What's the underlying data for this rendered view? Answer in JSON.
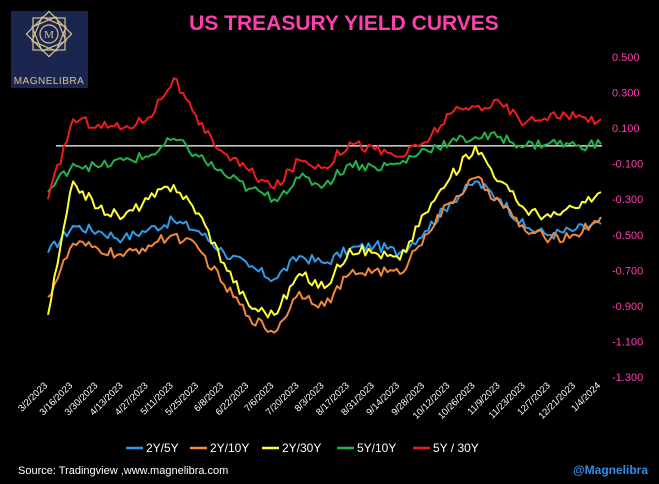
{
  "brand": {
    "logo_text": "MAGNELIBRA",
    "logo_bg": "#1b2650",
    "logo_gold": "#d8c48a"
  },
  "footer": {
    "source": "Source:  Tradingview ,www.magnelibra.com",
    "handle": "@Magnelibra"
  },
  "chart_data": {
    "type": "line",
    "title": "US TREASURY YIELD CURVES",
    "xlabel": "",
    "ylabel": "",
    "ylim": [
      -1.3,
      0.5
    ],
    "yticks": [
      0.5,
      0.3,
      0.1,
      -0.1,
      -0.3,
      -0.5,
      -0.7,
      -0.9,
      -1.1,
      -1.3
    ],
    "ytick_labels": [
      "0.500",
      "0.300",
      "0.100",
      "-0.100",
      "-0.300",
      "-0.500",
      "-0.700",
      "-0.900",
      "-1.100",
      "-1.300"
    ],
    "zero_line": 0.0,
    "legend_position": "bottom",
    "x": [
      "3/2/2023",
      "3/16/2023",
      "3/30/2023",
      "4/13/2023",
      "4/27/2023",
      "5/11/2023",
      "5/25/2023",
      "6/8/2023",
      "6/22/2023",
      "7/6/2023",
      "7/20/2023",
      "8/3/2023",
      "8/17/2023",
      "8/31/2023",
      "9/14/2023",
      "9/28/2023",
      "10/12/2023",
      "10/26/2023",
      "11/9/2023",
      "11/23/2023",
      "12/7/2023",
      "12/21/2023",
      "1/4/2024"
    ],
    "series": [
      {
        "name": "2Y/5Y",
        "color": "#2f9ce8",
        "values": [
          -0.6,
          -0.45,
          -0.48,
          -0.52,
          -0.47,
          -0.42,
          -0.48,
          -0.6,
          -0.68,
          -0.75,
          -0.62,
          -0.66,
          -0.58,
          -0.56,
          -0.6,
          -0.48,
          -0.32,
          -0.2,
          -0.3,
          -0.46,
          -0.5,
          -0.47,
          -0.44
        ]
      },
      {
        "name": "2Y/10Y",
        "color": "#f0893a",
        "values": [
          -0.85,
          -0.55,
          -0.58,
          -0.62,
          -0.56,
          -0.5,
          -0.58,
          -0.78,
          -0.96,
          -1.05,
          -0.82,
          -0.9,
          -0.72,
          -0.7,
          -0.72,
          -0.5,
          -0.32,
          -0.18,
          -0.32,
          -0.48,
          -0.52,
          -0.5,
          -0.4
        ]
      },
      {
        "name": "2Y/30Y",
        "color": "#ffff33",
        "values": [
          -0.95,
          -0.2,
          -0.35,
          -0.4,
          -0.3,
          -0.22,
          -0.38,
          -0.66,
          -0.9,
          -0.95,
          -0.72,
          -0.8,
          -0.58,
          -0.6,
          -0.64,
          -0.38,
          -0.18,
          0.0,
          -0.2,
          -0.36,
          -0.4,
          -0.35,
          -0.26
        ]
      },
      {
        "name": "5Y/10Y",
        "color": "#23b24a",
        "values": [
          -0.26,
          -0.1,
          -0.12,
          -0.08,
          -0.06,
          0.04,
          -0.06,
          -0.16,
          -0.24,
          -0.3,
          -0.18,
          -0.22,
          -0.1,
          -0.12,
          -0.1,
          -0.02,
          0.02,
          0.05,
          0.05,
          0.0,
          0.02,
          0.0,
          0.01
        ]
      },
      {
        "name": "5Y / 30Y",
        "color": "#ee1c1c",
        "values": [
          -0.3,
          0.15,
          0.12,
          0.1,
          0.16,
          0.38,
          0.12,
          -0.04,
          -0.14,
          -0.24,
          -0.08,
          -0.12,
          0.02,
          -0.02,
          -0.06,
          0.02,
          0.18,
          0.22,
          0.24,
          0.13,
          0.18,
          0.16,
          0.15
        ]
      }
    ]
  }
}
